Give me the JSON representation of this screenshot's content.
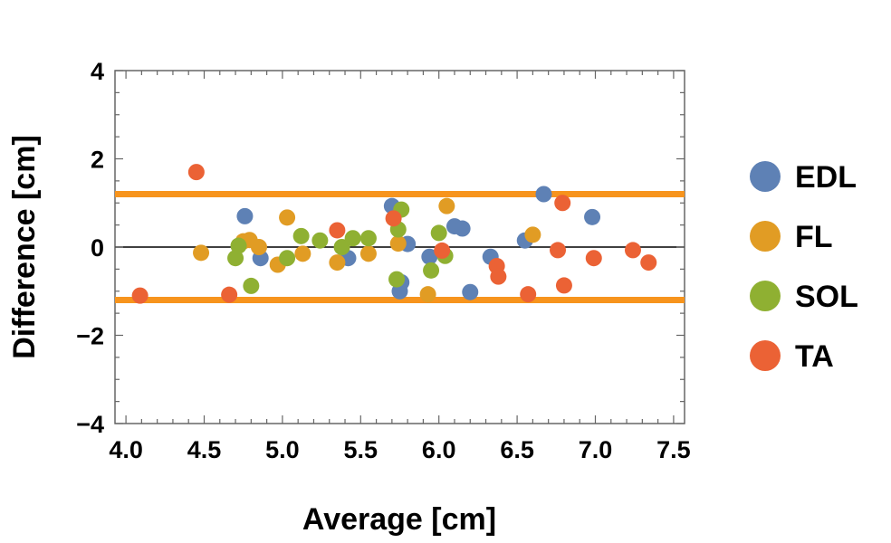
{
  "chart_data": {
    "type": "scatter",
    "xlabel": "Average [cm]",
    "ylabel": "Difference [cm]",
    "xlim": [
      3.93,
      7.57
    ],
    "ylim": [
      -4,
      4
    ],
    "xticks": [
      4.0,
      4.5,
      5.0,
      5.5,
      6.0,
      6.5,
      7.0,
      7.5
    ],
    "xtick_labels": [
      "4.0",
      "4.5",
      "5.0",
      "5.5",
      "6.0",
      "6.5",
      "7.0",
      "7.5"
    ],
    "yticks": [
      -4,
      -2,
      0,
      2,
      4
    ],
    "ytick_labels": [
      "−4",
      "−2",
      "0",
      "2",
      "4"
    ],
    "grid": false,
    "legend_position": "right",
    "reference_lines": [
      {
        "y": 1.2,
        "color": "#f7941d"
      },
      {
        "y": -1.2,
        "color": "#f7941d"
      },
      {
        "y": 0,
        "color": "#000000"
      }
    ],
    "series": [
      {
        "name": "EDL",
        "color": "#5e81b5",
        "points": [
          [
            4.76,
            0.7
          ],
          [
            4.86,
            -0.25
          ],
          [
            5.42,
            -0.25
          ],
          [
            5.7,
            0.93
          ],
          [
            5.75,
            -1.0
          ],
          [
            5.76,
            -0.8
          ],
          [
            5.8,
            0.07
          ],
          [
            5.94,
            -0.22
          ],
          [
            6.1,
            0.47
          ],
          [
            6.15,
            0.42
          ],
          [
            6.2,
            -1.02
          ],
          [
            6.33,
            -0.22
          ],
          [
            6.55,
            0.15
          ],
          [
            6.67,
            1.2
          ],
          [
            6.98,
            0.68
          ]
        ]
      },
      {
        "name": "FL",
        "color": "#e19c24",
        "points": [
          [
            4.48,
            -0.13
          ],
          [
            4.75,
            0.13
          ],
          [
            4.79,
            0.16
          ],
          [
            4.85,
            0.0
          ],
          [
            4.97,
            -0.4
          ],
          [
            5.03,
            0.67
          ],
          [
            5.13,
            -0.15
          ],
          [
            5.35,
            -0.35
          ],
          [
            5.55,
            -0.15
          ],
          [
            5.74,
            0.08
          ],
          [
            5.93,
            -1.07
          ],
          [
            6.05,
            0.93
          ],
          [
            6.6,
            0.28
          ]
        ]
      },
      {
        "name": "SOL",
        "color": "#8fb032",
        "points": [
          [
            4.7,
            -0.25
          ],
          [
            4.72,
            0.03
          ],
          [
            4.8,
            -0.88
          ],
          [
            5.03,
            -0.25
          ],
          [
            5.12,
            0.25
          ],
          [
            5.24,
            0.15
          ],
          [
            5.38,
            0.0
          ],
          [
            5.45,
            0.2
          ],
          [
            5.55,
            0.2
          ],
          [
            5.73,
            -0.73
          ],
          [
            5.76,
            0.85
          ],
          [
            5.74,
            0.4
          ],
          [
            5.95,
            -0.53
          ],
          [
            6.0,
            0.32
          ],
          [
            6.04,
            -0.2
          ]
        ]
      },
      {
        "name": "TA",
        "color": "#eb6235",
        "points": [
          [
            4.09,
            -1.1
          ],
          [
            4.45,
            1.7
          ],
          [
            4.66,
            -1.08
          ],
          [
            5.35,
            0.38
          ],
          [
            5.71,
            0.65
          ],
          [
            6.02,
            -0.08
          ],
          [
            6.37,
            -0.43
          ],
          [
            6.38,
            -0.67
          ],
          [
            6.57,
            -1.07
          ],
          [
            6.76,
            -0.07
          ],
          [
            6.79,
            1.0
          ],
          [
            6.8,
            -0.87
          ],
          [
            6.99,
            -0.25
          ],
          [
            7.24,
            -0.07
          ],
          [
            7.34,
            -0.35
          ]
        ]
      }
    ]
  }
}
